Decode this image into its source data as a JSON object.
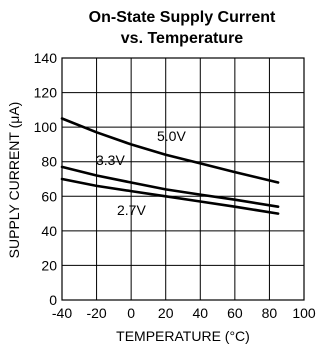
{
  "chart_data": {
    "type": "line",
    "title": [
      "On-State Supply Current",
      "vs. Temperature"
    ],
    "xlabel": "TEMPERATURE (°C)",
    "ylabel": "SUPPLY CURRENT (μA)",
    "xlim": [
      -40,
      100
    ],
    "ylim": [
      0,
      140
    ],
    "xticks": [
      -40,
      -20,
      0,
      20,
      40,
      60,
      80,
      100
    ],
    "yticks": [
      0,
      20,
      40,
      60,
      80,
      100,
      120,
      140
    ],
    "grid": true,
    "series": [
      {
        "name": "5.0V",
        "x": [
          -40,
          -20,
          0,
          20,
          40,
          60,
          85
        ],
        "y": [
          105,
          97,
          90,
          84,
          79,
          74,
          68
        ]
      },
      {
        "name": "3.3V",
        "x": [
          -40,
          -20,
          0,
          20,
          40,
          60,
          85
        ],
        "y": [
          77,
          72,
          68,
          64,
          61,
          58,
          54
        ]
      },
      {
        "name": "2.7V",
        "x": [
          -40,
          -20,
          0,
          20,
          40,
          60,
          85
        ],
        "y": [
          70,
          66,
          63,
          60,
          57,
          54,
          50
        ]
      }
    ]
  }
}
